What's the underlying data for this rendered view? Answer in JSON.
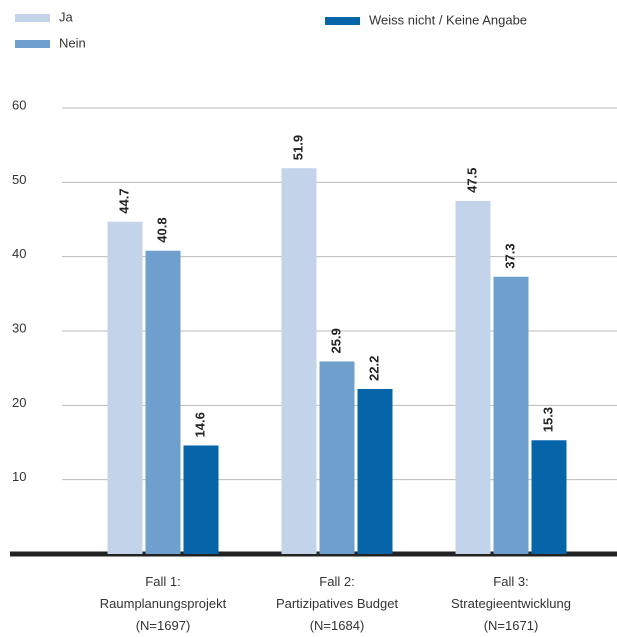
{
  "chart_data": {
    "type": "bar",
    "categories": [
      "Fall 1:\nRaumplanungsprojekt\n(N=1697)",
      "Fall 2:\nPartizipatives Budget\n(N=1684)",
      "Fall 3:\nStrategieentwicklung\n(N=1671)"
    ],
    "series": [
      {
        "name": "Ja",
        "color": "#c3d3ea",
        "values": [
          44.7,
          51.9,
          47.5
        ]
      },
      {
        "name": "Nein",
        "color": "#6f9fcd",
        "values": [
          40.8,
          25.9,
          37.3
        ]
      },
      {
        "name": "Weiss nicht / Keine Angabe",
        "color": "#0565a8",
        "values": [
          14.6,
          22.2,
          15.3
        ]
      }
    ],
    "ylim": [
      0,
      60
    ],
    "yticks": [
      10,
      20,
      30,
      40,
      50,
      60
    ],
    "grid": true
  }
}
